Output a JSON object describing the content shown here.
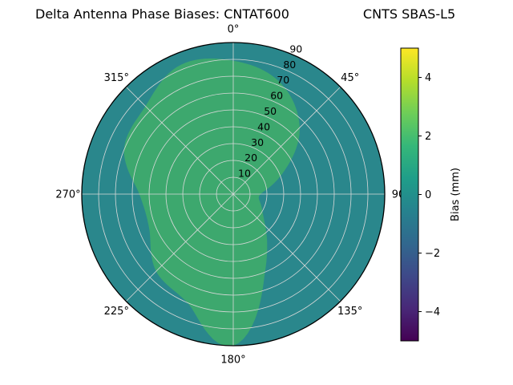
{
  "chart_data": {
    "type": "polar_contour",
    "title_left": "Delta Antenna Phase Biases: CNTAT600",
    "title_right": "CNTS SBAS-L5",
    "theta_zero_location": "N",
    "theta_direction": "clockwise",
    "theta_ticks_deg": [
      0,
      45,
      90,
      135,
      180,
      225,
      270,
      315
    ],
    "theta_tick_labels": [
      "0°",
      "45°",
      "90",
      "135°",
      "180°",
      "225°",
      "270°",
      "315°"
    ],
    "r_ticks": [
      10,
      20,
      30,
      40,
      50,
      60,
      70,
      80,
      90
    ],
    "r_tick_labels": [
      "10",
      "20",
      "30",
      "40",
      "50",
      "60",
      "70",
      "80",
      "90"
    ],
    "r_max": 90,
    "r_label_angle_deg": 22.5,
    "grid": true,
    "grid_color": "#d9d9d9",
    "edge_color": "#000000",
    "background_region": {
      "name": "bias-band-near-0mm",
      "bias_mm": 0,
      "color": "#2a878c"
    },
    "green_region": {
      "name": "bias-band-near-1mm",
      "bias_mm": 1,
      "color": "#3da86e",
      "azimuth_deg": [
        0,
        22.5,
        45,
        67.5,
        90,
        112.5,
        135,
        157.5,
        180,
        202.5,
        225,
        247.5,
        270,
        292.5,
        315,
        337.5
      ],
      "radius_frac": [
        0.88,
        0.8,
        0.62,
        0.35,
        0.18,
        0.2,
        0.3,
        0.55,
        1.0,
        0.78,
        0.72,
        0.6,
        0.62,
        0.78,
        0.82,
        0.92
      ]
    },
    "colorbar": {
      "label": "Bias (mm)",
      "vmin": -5,
      "vmax": 5,
      "ticks": [
        4,
        2,
        0,
        -2,
        -4
      ],
      "tick_labels": [
        "4",
        "2",
        "0",
        "−2",
        "−4"
      ],
      "colormap": "viridis",
      "colors_top_to_bottom": [
        "#fde725",
        "#b5de2b",
        "#6ece58",
        "#35b779",
        "#1f9e89",
        "#26828e",
        "#31688e",
        "#3e4989",
        "#482878",
        "#440154"
      ]
    }
  }
}
